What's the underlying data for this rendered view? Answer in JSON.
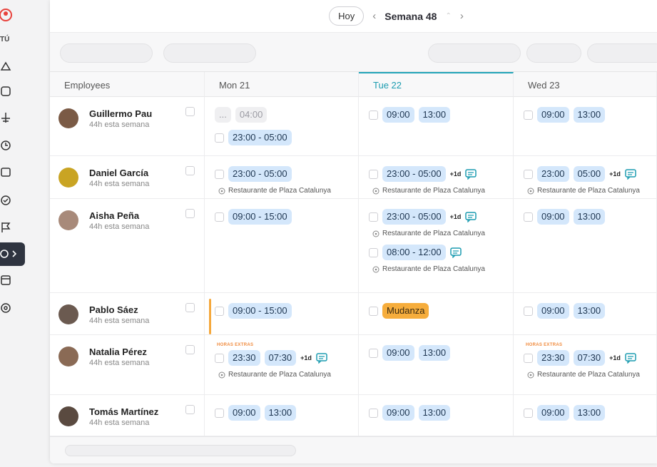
{
  "sidebar": {
    "user_label": "TÚ"
  },
  "topbar": {
    "today": "Hoy",
    "week": "Semana 48"
  },
  "table": {
    "columns": [
      "Employees",
      "Mon 21",
      "Tue 22",
      "Wed 23"
    ],
    "today_column": 2,
    "rows": [
      {
        "name": "Guillermo Pau",
        "hours": "44h esta semana",
        "avatar_color": "#7a5a45",
        "cells": [
          [
            {
              "times": [
                "...",
                "04:00"
              ],
              "style": "muted",
              "checkbox": false
            },
            {
              "times": [
                "23:00 - 05:00"
              ]
            }
          ],
          [
            {
              "times": [
                "09:00",
                "13:00"
              ]
            }
          ],
          [
            {
              "times": [
                "09:00",
                "13:00"
              ]
            }
          ]
        ]
      },
      {
        "name": "Daniel García",
        "hours": "44h esta semana",
        "avatar_color": "#c9a423",
        "cells": [
          [
            {
              "times": [
                "23:00 - 05:00"
              ],
              "location": "Restaurante de Plaza Catalunya"
            }
          ],
          [
            {
              "times": [
                "23:00 - 05:00"
              ],
              "extra": "+1d",
              "chat": true,
              "location": "Restaurante de Plaza Catalunya"
            }
          ],
          [
            {
              "times": [
                "23:00",
                "05:00"
              ],
              "extra": "+1d",
              "chat": true,
              "location": "Restaurante de Plaza Catalunya"
            }
          ]
        ]
      },
      {
        "name": "Aisha Peña",
        "hours": "44h esta semana",
        "avatar_color": "#a88a7a",
        "cells": [
          [
            {
              "times": [
                "09:00 - 15:00"
              ]
            }
          ],
          [
            {
              "times": [
                "23:00 - 05:00"
              ],
              "extra": "+1d",
              "chat": true,
              "location": "Restaurante de Plaza Catalunya"
            },
            {
              "times": [
                "08:00 - 12:00"
              ],
              "chat": true,
              "location": "Restaurante de Plaza Catalunya"
            }
          ],
          [
            {
              "times": [
                "09:00",
                "13:00"
              ]
            }
          ]
        ]
      },
      {
        "name": "Pablo Sáez",
        "hours": "44h esta semana",
        "avatar_color": "#6b5a50",
        "cells": [
          [
            {
              "times": [
                "09:00 - 15:00"
              ],
              "accent_color": "#f5a83c"
            }
          ],
          [
            {
              "times": [
                "Mudanza"
              ],
              "style": "absence"
            }
          ],
          [
            {
              "times": [
                "09:00",
                "13:00"
              ]
            }
          ]
        ]
      },
      {
        "name": "Natalia Pérez",
        "hours": "44h esta semana",
        "avatar_color": "#8a6a55",
        "cells": [
          [
            {
              "tag": "HORAS EXTRAS",
              "times": [
                "23:30",
                "07:30"
              ],
              "extra": "+1d",
              "chat": true,
              "location": "Restaurante de Plaza Catalunya"
            }
          ],
          [
            {
              "times": [
                "09:00",
                "13:00"
              ]
            }
          ],
          [
            {
              "tag": "HORAS EXTRAS",
              "times": [
                "23:30",
                "07:30"
              ],
              "extra": "+1d",
              "chat": true,
              "location": "Restaurante de Plaza Catalunya"
            }
          ]
        ]
      },
      {
        "name": "Tomás Martínez",
        "hours": "44h esta semana",
        "avatar_color": "#5a4a40",
        "cells": [
          [
            {
              "times": [
                "09:00",
                "13:00"
              ]
            }
          ],
          [
            {
              "times": [
                "09:00",
                "13:00"
              ]
            }
          ],
          [
            {
              "times": [
                "09:00",
                "13:00"
              ]
            }
          ]
        ]
      }
    ]
  }
}
